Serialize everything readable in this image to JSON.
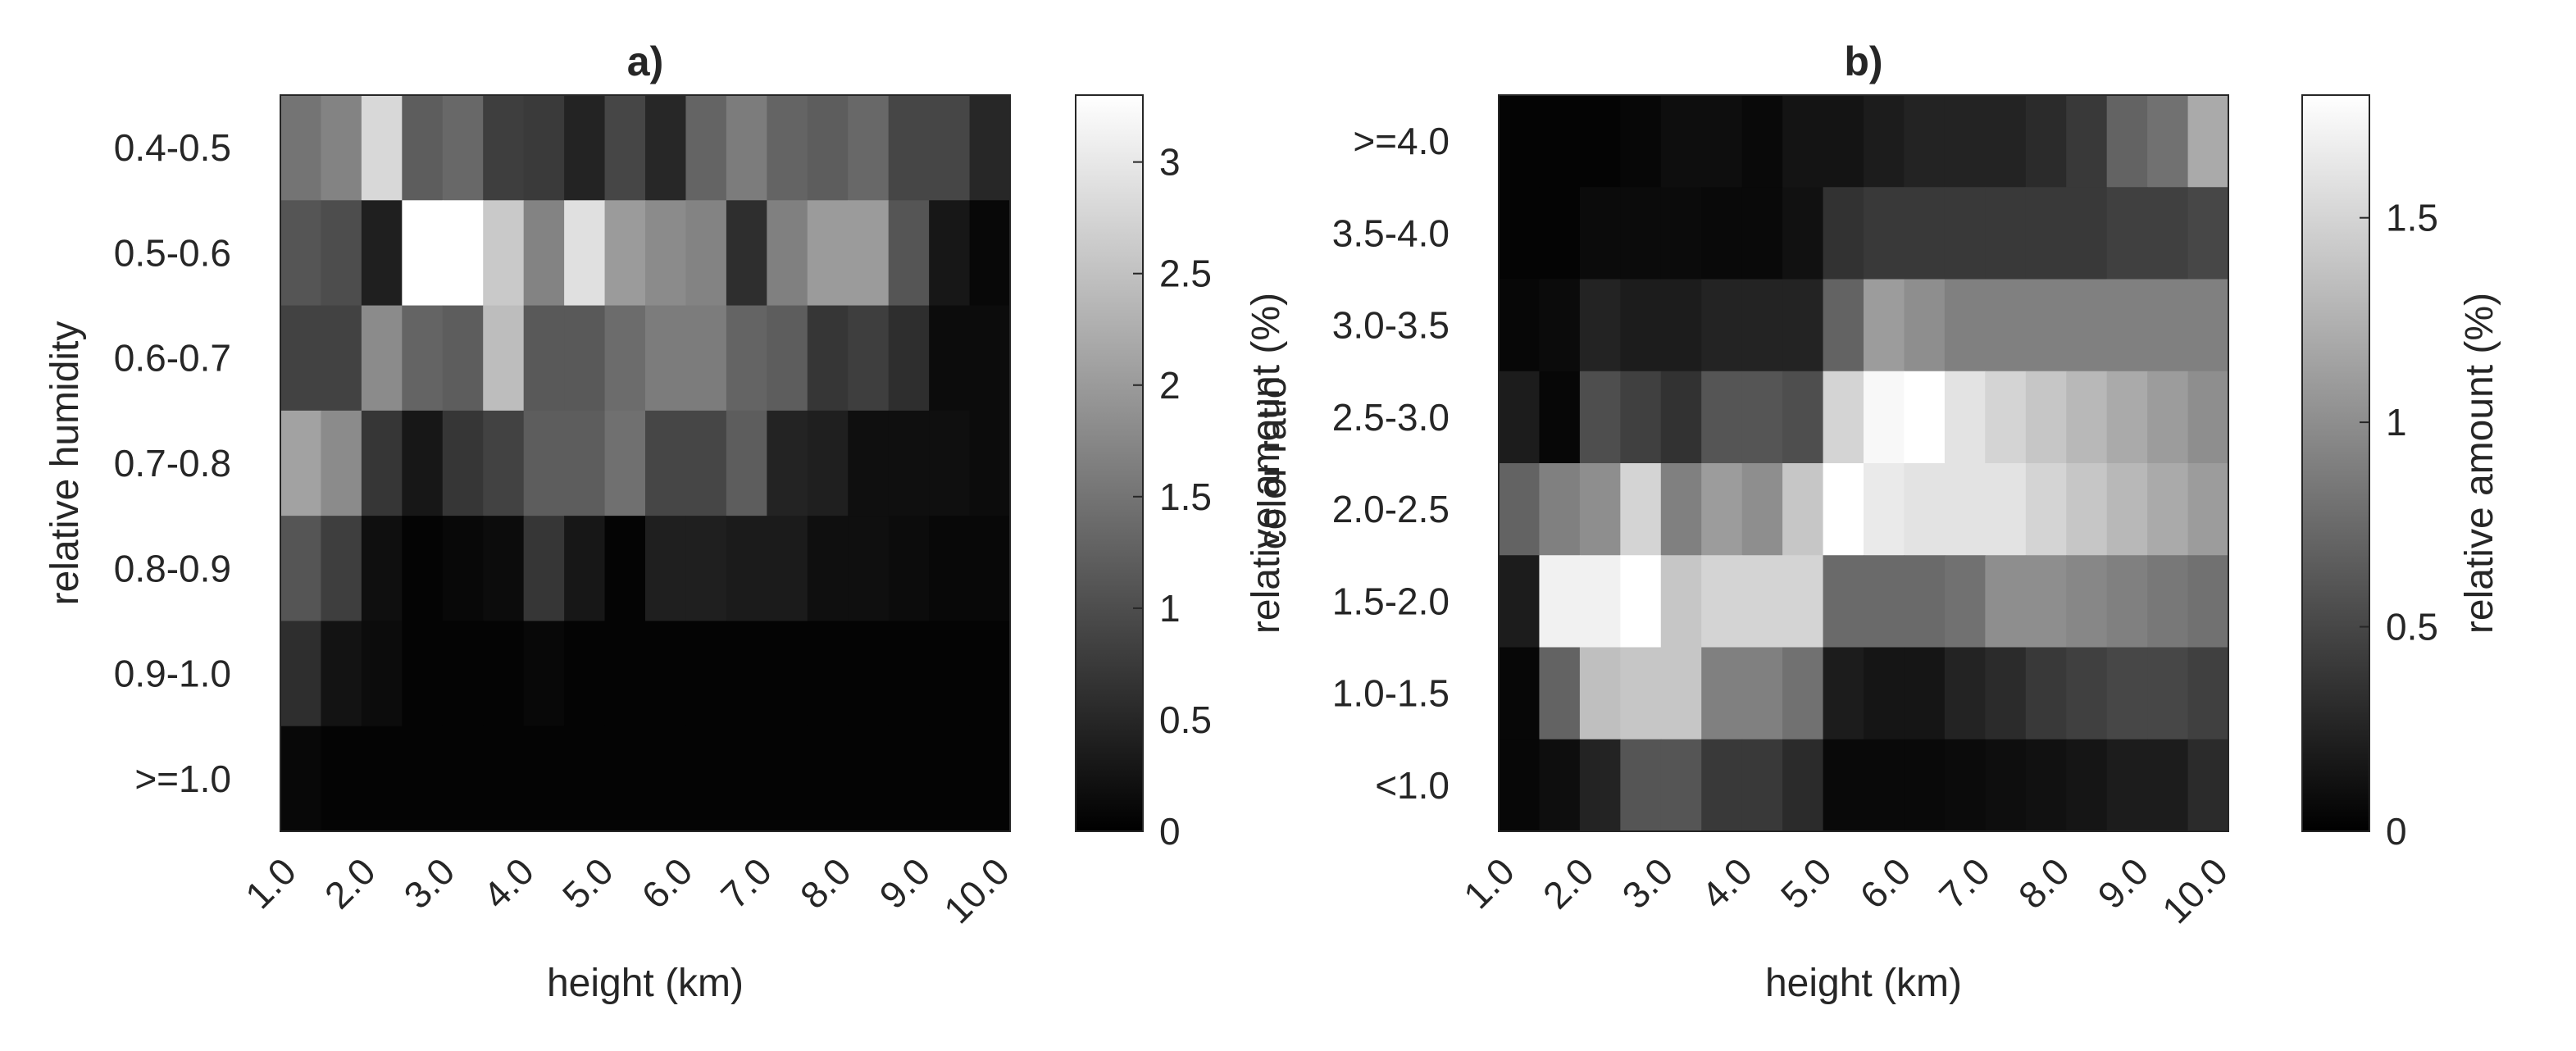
{
  "chart_data": [
    {
      "type": "heatmap",
      "title": "a)",
      "xlabel": "height (km)",
      "ylabel": "relative humidity",
      "x_ticks": [
        "1.0",
        "2.0",
        "3.0",
        "4.0",
        "5.0",
        "6.0",
        "7.0",
        "8.0",
        "9.0",
        "10.0"
      ],
      "y_ticks": [
        "0.4-0.5",
        "0.5-0.6",
        "0.6-0.7",
        "0.7-0.8",
        "0.8-0.9",
        "0.9-1.0",
        ">=1.0"
      ],
      "colorbar": {
        "label": "relative amount (%)",
        "range": [
          0,
          3.3
        ],
        "ticks": [
          "0",
          "0.5",
          "1",
          "1.5",
          "2",
          "2.5",
          "3"
        ],
        "colormap": "gray"
      },
      "values": [
        [
          1.5,
          1.7,
          2.8,
          1.2,
          1.35,
          0.8,
          0.75,
          0.45,
          0.9,
          0.5,
          1.3,
          1.6,
          1.3,
          1.2,
          1.35,
          0.9,
          0.9,
          0.5
        ],
        [
          1.1,
          1.0,
          0.4,
          3.3,
          3.3,
          2.6,
          1.7,
          2.9,
          2.0,
          1.8,
          1.7,
          0.6,
          1.65,
          2.0,
          2.0,
          1.1,
          0.3,
          0.1
        ],
        [
          0.85,
          0.85,
          1.8,
          1.3,
          1.2,
          2.45,
          1.15,
          1.15,
          1.4,
          1.6,
          1.6,
          1.3,
          1.2,
          0.7,
          0.8,
          0.6,
          0.15,
          0.15
        ],
        [
          2.1,
          1.8,
          0.7,
          0.3,
          0.7,
          0.85,
          1.2,
          1.2,
          1.45,
          0.9,
          0.9,
          1.2,
          0.45,
          0.4,
          0.2,
          0.2,
          0.2,
          0.15
        ],
        [
          1.1,
          0.8,
          0.2,
          0.05,
          0.1,
          0.15,
          0.7,
          0.3,
          0.05,
          0.4,
          0.4,
          0.35,
          0.35,
          0.2,
          0.2,
          0.15,
          0.1,
          0.1
        ],
        [
          0.6,
          0.25,
          0.15,
          0.05,
          0.05,
          0.05,
          0.1,
          0.05,
          0.05,
          0.05,
          0.05,
          0.05,
          0.05,
          0.05,
          0.05,
          0.05,
          0.05,
          0.05
        ],
        [
          0.1,
          0.05,
          0.05,
          0.05,
          0.05,
          0.05,
          0.05,
          0.05,
          0.05,
          0.05,
          0.05,
          0.05,
          0.05,
          0.05,
          0.05,
          0.05,
          0.05,
          0.05
        ]
      ]
    },
    {
      "type": "heatmap",
      "title": "b)",
      "xlabel": "height (km)",
      "ylabel": "color ratio",
      "x_ticks": [
        "1.0",
        "2.0",
        "3.0",
        "4.0",
        "5.0",
        "6.0",
        "7.0",
        "8.0",
        "9.0",
        "10.0"
      ],
      "y_ticks": [
        ">=4.0",
        "3.5-4.0",
        "3.0-3.5",
        "2.5-3.0",
        "2.0-2.5",
        "1.5-2.0",
        "1.0-1.5",
        "<1.0"
      ],
      "colorbar": {
        "label": "relative amount (%)",
        "range": [
          0,
          1.8
        ],
        "ticks": [
          "0",
          "0.5",
          "1",
          "1.5"
        ],
        "colormap": "gray"
      },
      "values": [
        [
          0.03,
          0.03,
          0.03,
          0.05,
          0.1,
          0.1,
          0.06,
          0.14,
          0.14,
          0.2,
          0.25,
          0.25,
          0.25,
          0.3,
          0.4,
          0.7,
          0.8,
          1.2
        ],
        [
          0.03,
          0.03,
          0.08,
          0.08,
          0.08,
          0.06,
          0.06,
          0.12,
          0.35,
          0.4,
          0.4,
          0.4,
          0.4,
          0.4,
          0.4,
          0.45,
          0.45,
          0.5
        ],
        [
          0.05,
          0.08,
          0.25,
          0.2,
          0.2,
          0.25,
          0.25,
          0.25,
          0.7,
          1.1,
          1.0,
          0.9,
          0.9,
          0.9,
          0.9,
          0.9,
          0.9,
          0.9
        ],
        [
          0.2,
          0.05,
          0.55,
          0.45,
          0.35,
          0.6,
          0.6,
          0.55,
          1.5,
          1.75,
          1.8,
          1.6,
          1.5,
          1.4,
          1.3,
          1.2,
          1.1,
          1.0
        ],
        [
          0.7,
          0.9,
          1.0,
          1.5,
          0.9,
          1.1,
          1.0,
          1.4,
          1.8,
          1.65,
          1.6,
          1.6,
          1.6,
          1.5,
          1.4,
          1.3,
          1.2,
          1.1
        ],
        [
          0.2,
          1.7,
          1.7,
          1.8,
          1.4,
          1.5,
          1.5,
          1.5,
          0.75,
          0.75,
          0.75,
          0.8,
          1.0,
          1.0,
          0.95,
          0.9,
          0.85,
          0.8
        ],
        [
          0.05,
          0.7,
          1.35,
          1.4,
          1.4,
          0.9,
          0.9,
          0.8,
          0.2,
          0.15,
          0.15,
          0.25,
          0.3,
          0.4,
          0.45,
          0.5,
          0.5,
          0.45
        ],
        [
          0.05,
          0.1,
          0.25,
          0.6,
          0.6,
          0.4,
          0.4,
          0.3,
          0.06,
          0.06,
          0.06,
          0.08,
          0.1,
          0.12,
          0.15,
          0.2,
          0.2,
          0.3
        ]
      ]
    }
  ]
}
